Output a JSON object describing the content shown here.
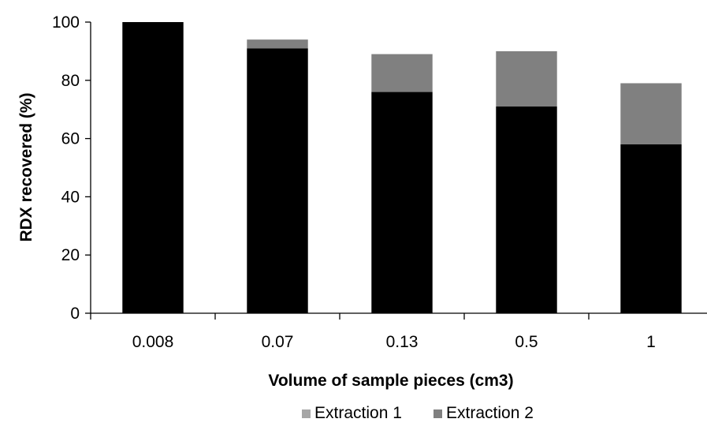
{
  "chart_data": {
    "type": "bar",
    "stacked": true,
    "categories": [
      "0.008",
      "0.07",
      "0.13",
      "0.5",
      "1"
    ],
    "series": [
      {
        "name": "Extraction 1",
        "values": [
          100,
          91,
          76,
          71,
          58
        ],
        "color": "#000000",
        "legend_color": "#a6a6a6"
      },
      {
        "name": "Extraction 2",
        "values": [
          0,
          3,
          13,
          19,
          21
        ],
        "color": "#808080",
        "legend_color": "#808080"
      }
    ],
    "xlabel": "Volume of sample pieces (cm3)",
    "ylabel": "RDX recovered (%)",
    "ylim": [
      0,
      100
    ],
    "yticks": [
      0,
      20,
      40,
      60,
      80,
      100
    ],
    "grid": false,
    "legend_position": "bottom"
  }
}
